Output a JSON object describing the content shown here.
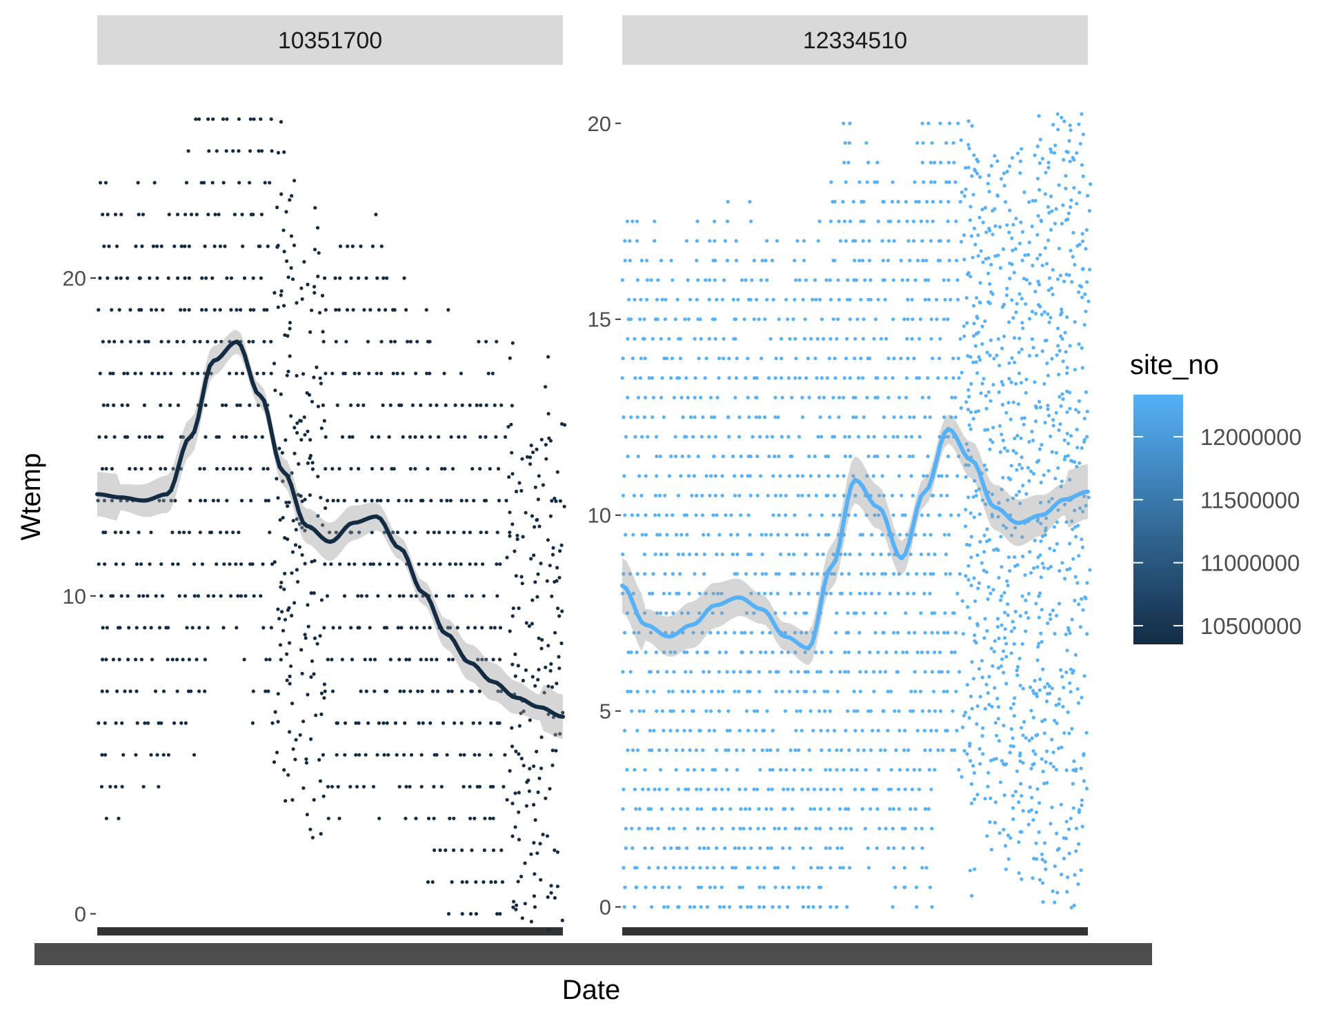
{
  "chart_data": {
    "type": "scatter",
    "xlabel": "Date",
    "ylabel": "Wtemp",
    "legend": {
      "title": "site_no",
      "position": "right",
      "type": "colorbar",
      "low_color": "#132B43",
      "high_color": "#56B1F7",
      "range": [
        10351700,
        12334510
      ],
      "breaks": [
        10500000,
        11000000,
        11500000,
        12000000
      ],
      "labels": [
        "10500000",
        "11000000",
        "11500000",
        "12000000"
      ]
    },
    "panels": [
      {
        "strip_label": "10351700",
        "site_no": 10351700,
        "color": "#132B43",
        "ylim": [
          -0.4,
          26.1
        ],
        "yticks": [
          0,
          10,
          20
        ],
        "ytick_labels": [
          "0",
          "10",
          "20"
        ],
        "smooth": {
          "x": [
            0,
            0.05,
            0.1,
            0.15,
            0.2,
            0.25,
            0.3,
            0.35,
            0.4,
            0.45,
            0.5,
            0.55,
            0.6,
            0.65,
            0.7,
            0.75,
            0.8,
            0.85,
            0.9,
            0.95,
            1.0
          ],
          "y": [
            13.2,
            13.1,
            13.0,
            13.2,
            15.0,
            17.4,
            18.0,
            16.3,
            13.9,
            12.2,
            11.7,
            12.3,
            12.5,
            11.5,
            10.1,
            8.8,
            7.9,
            7.3,
            6.8,
            6.5,
            6.2
          ]
        }
      },
      {
        "strip_label": "12334510",
        "site_no": 12334510,
        "color": "#56B1F7",
        "ylim": [
          -0.5,
          21.0
        ],
        "yticks": [
          0,
          5,
          10,
          15,
          20
        ],
        "ytick_labels": [
          "0",
          "5",
          "10",
          "15",
          "20"
        ],
        "smooth": {
          "x": [
            0,
            0.05,
            0.1,
            0.15,
            0.2,
            0.25,
            0.3,
            0.35,
            0.4,
            0.45,
            0.5,
            0.55,
            0.6,
            0.65,
            0.7,
            0.75,
            0.8,
            0.85,
            0.9,
            0.95,
            1.0
          ],
          "y": [
            8.2,
            7.2,
            6.9,
            7.2,
            7.7,
            7.9,
            7.6,
            6.9,
            6.6,
            8.7,
            10.9,
            10.2,
            8.9,
            10.6,
            12.2,
            11.4,
            10.2,
            9.8,
            10.0,
            10.4,
            10.6
          ]
        }
      }
    ]
  }
}
